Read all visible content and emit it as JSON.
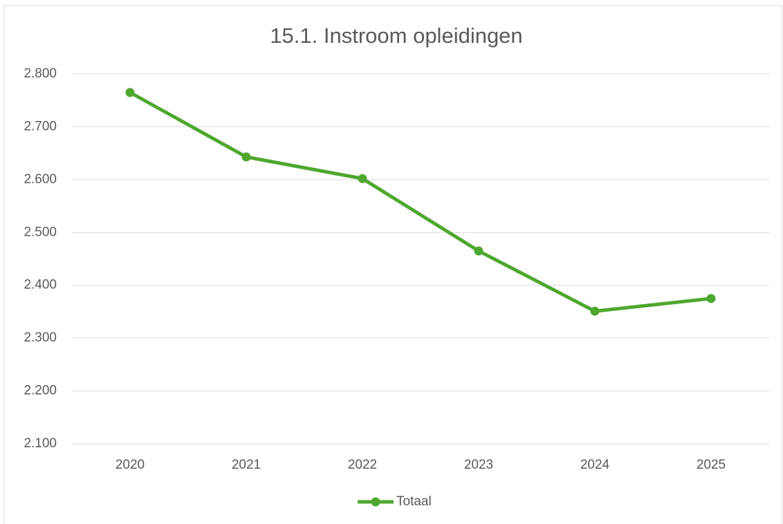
{
  "chart_data": {
    "type": "line",
    "title": "15.1. Instroom opleidingen",
    "categories": [
      "2020",
      "2021",
      "2022",
      "2023",
      "2024",
      "2025"
    ],
    "series": [
      {
        "name": "Totaal",
        "color": "#4ea72e",
        "values": [
          2765,
          2643,
          2602,
          2465,
          2351,
          2375
        ]
      }
    ],
    "ylim": [
      2100,
      2800
    ],
    "yticks": [
      {
        "value": 2100,
        "label": "2.100"
      },
      {
        "value": 2200,
        "label": "2.200"
      },
      {
        "value": 2300,
        "label": "2.300"
      },
      {
        "value": 2400,
        "label": "2.400"
      },
      {
        "value": 2500,
        "label": "2.500"
      },
      {
        "value": 2600,
        "label": "2.600"
      },
      {
        "value": 2700,
        "label": "2.700"
      },
      {
        "value": 2800,
        "label": "2.800"
      }
    ],
    "grid": true,
    "legend": "bottom"
  }
}
